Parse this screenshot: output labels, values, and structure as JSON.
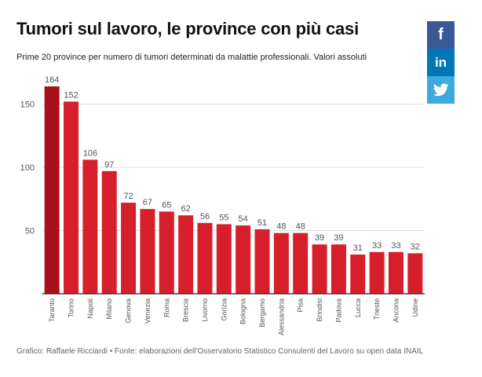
{
  "title": "Tumori sul lavoro, le province con più casi",
  "subtitle": "Prime 20 province per numero di tumori determinati da malattie professionali. Valori assoluti",
  "credits": "Grafico: Raffaele Ricciardi • Fonte: elaborazioni dell'Osservatorio Statistico Consulenti del Lavoro su open data INAIL",
  "social": [
    {
      "name": "facebook",
      "label": "f",
      "color": "#3b5998"
    },
    {
      "name": "linkedin",
      "label": "in",
      "color": "#0077b5"
    },
    {
      "name": "twitter",
      "label": "twitter-bird-icon",
      "color": "#3ea9dc"
    }
  ],
  "colors": {
    "highlight": "#a8101b",
    "bar": "#d71f2b",
    "grid": "#dddddd",
    "axis": "#222222",
    "tick": "#555555"
  },
  "chart_data": {
    "type": "bar",
    "categories": [
      "Taranto",
      "Torino",
      "Napoli",
      "Milano",
      "Genova",
      "Venezia",
      "Roma",
      "Brescia",
      "Livorno",
      "Gorizia",
      "Bologna",
      "Bergamo",
      "Alessandria",
      "Pisa",
      "Brindisi",
      "Padova",
      "Lucca",
      "Trieste",
      "Ancona",
      "Udine"
    ],
    "values": [
      164,
      152,
      106,
      97,
      72,
      67,
      65,
      62,
      56,
      55,
      54,
      51,
      48,
      48,
      39,
      39,
      31,
      33,
      33,
      32
    ],
    "highlight_index": 0,
    "yticks": [
      50,
      100,
      150
    ],
    "ylim": [
      0,
      164
    ],
    "grid": true,
    "data_labels": true
  }
}
